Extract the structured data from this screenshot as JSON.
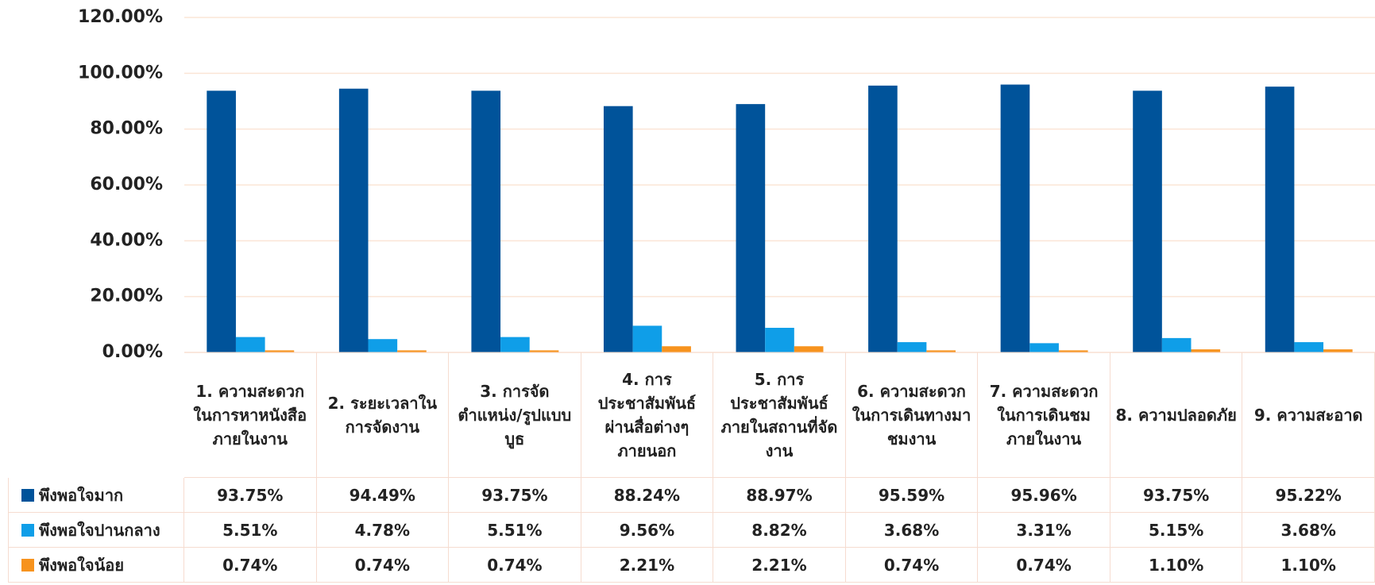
{
  "chart_data": {
    "type": "bar",
    "categories": [
      "1. ความสะดวกในการหาหนังสือภายในงาน",
      "2. ระยะเวลาในการจัดงาน",
      "3. การจัดตำแหน่ง/รูปแบบบูธ",
      "4. การประชาสัมพันธ์ผ่านสื่อต่างๆ ภายนอก",
      "5. การประชาสัมพันธ์ภายในสถานที่จัดงาน",
      "6. ความสะดวกในการเดินทางมาชมงาน",
      "7. ความสะดวกในการเดินชมภายในงาน",
      "8. ความปลอดภัย",
      "9. ความสะอาด"
    ],
    "series": [
      {
        "name": "พึงพอใจมาก",
        "color": "#00539a",
        "values": [
          93.75,
          94.49,
          93.75,
          88.24,
          88.97,
          95.59,
          95.96,
          93.75,
          95.22
        ],
        "value_labels": [
          "93.75%",
          "94.49%",
          "93.75%",
          "88.24%",
          "88.97%",
          "95.59%",
          "95.96%",
          "93.75%",
          "95.22%"
        ]
      },
      {
        "name": "พึงพอใจปานกลาง",
        "color": "#0f9ee8",
        "values": [
          5.51,
          4.78,
          5.51,
          9.56,
          8.82,
          3.68,
          3.31,
          5.15,
          3.68
        ],
        "value_labels": [
          "5.51%",
          "4.78%",
          "5.51%",
          "9.56%",
          "8.82%",
          "3.68%",
          "3.31%",
          "5.15%",
          "3.68%"
        ]
      },
      {
        "name": "พึงพอใจน้อย",
        "color": "#f7931e",
        "values": [
          0.74,
          0.74,
          0.74,
          2.21,
          2.21,
          0.74,
          0.74,
          1.1,
          1.1
        ],
        "value_labels": [
          "0.74%",
          "0.74%",
          "0.74%",
          "2.21%",
          "2.21%",
          "0.74%",
          "0.74%",
          "1.10%",
          "1.10%"
        ]
      }
    ],
    "ylim": [
      0,
      120
    ],
    "yticks": [
      {
        "value": 0,
        "label": "0.00%"
      },
      {
        "value": 20,
        "label": "20.00%"
      },
      {
        "value": 40,
        "label": "40.00%"
      },
      {
        "value": 60,
        "label": "60.00%"
      },
      {
        "value": 80,
        "label": "80.00%"
      },
      {
        "value": 100,
        "label": "100.00%"
      },
      {
        "value": 120,
        "label": "120.00%"
      }
    ],
    "grid": true
  }
}
